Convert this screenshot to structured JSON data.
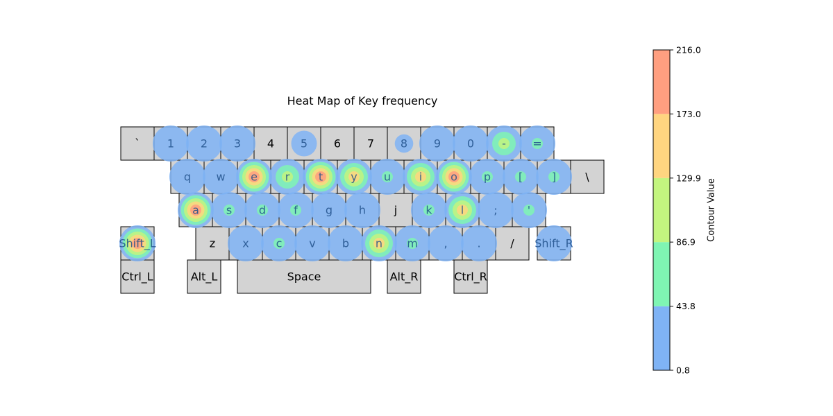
{
  "chart_data": {
    "type": "heatmap",
    "title": "Heat Map of Key frequency",
    "colorbar": {
      "label": "Contour Value",
      "levels": [
        0.8,
        43.8,
        86.9,
        129.9,
        173.0,
        216.0
      ],
      "tick_labels": [
        "0.8",
        "43.8",
        "86.9",
        "129.9",
        "173.0",
        "216.0"
      ],
      "colors": [
        "#7fb3f5",
        "#7ff5b3",
        "#c3f57f",
        "#ffd580",
        "#ff9f80"
      ]
    },
    "keys": [
      {
        "label": "`",
        "row": 0,
        "col": 0,
        "width": 1,
        "value": 0
      },
      {
        "label": "1",
        "row": 0,
        "col": 1,
        "width": 1,
        "value": 20
      },
      {
        "label": "2",
        "row": 0,
        "col": 2,
        "width": 1,
        "value": 20
      },
      {
        "label": "3",
        "row": 0,
        "col": 3,
        "width": 1,
        "value": 20
      },
      {
        "label": "4",
        "row": 0,
        "col": 4,
        "width": 1,
        "value": 0
      },
      {
        "label": "5",
        "row": 0,
        "col": 5,
        "width": 1,
        "value": 10
      },
      {
        "label": "6",
        "row": 0,
        "col": 6,
        "width": 1,
        "value": 0
      },
      {
        "label": "7",
        "row": 0,
        "col": 7,
        "width": 1,
        "value": 0
      },
      {
        "label": "8",
        "row": 0,
        "col": 8,
        "width": 1,
        "value": 3
      },
      {
        "label": "9",
        "row": 0,
        "col": 9,
        "width": 1,
        "value": 20
      },
      {
        "label": "0",
        "row": 0,
        "col": 10,
        "width": 1,
        "value": 20
      },
      {
        "label": "-",
        "row": 0,
        "col": 11,
        "width": 1,
        "value": 100
      },
      {
        "label": "=",
        "row": 0,
        "col": 12,
        "width": 1,
        "value": 60
      },
      {
        "label": "q",
        "row": 1,
        "col": 1.5,
        "width": 1,
        "value": 20
      },
      {
        "label": "w",
        "row": 1,
        "col": 2.5,
        "width": 1,
        "value": 25
      },
      {
        "label": "e",
        "row": 1,
        "col": 3.5,
        "width": 1,
        "value": 210
      },
      {
        "label": "r",
        "row": 1,
        "col": 4.5,
        "width": 1,
        "value": 105
      },
      {
        "label": "t",
        "row": 1,
        "col": 5.5,
        "width": 1,
        "value": 200
      },
      {
        "label": "y",
        "row": 1,
        "col": 6.5,
        "width": 1,
        "value": 150
      },
      {
        "label": "u",
        "row": 1,
        "col": 7.5,
        "width": 1,
        "value": 60
      },
      {
        "label": "i",
        "row": 1,
        "col": 8.5,
        "width": 1,
        "value": 150
      },
      {
        "label": "o",
        "row": 1,
        "col": 9.5,
        "width": 1,
        "value": 175
      },
      {
        "label": "p",
        "row": 1,
        "col": 10.5,
        "width": 1,
        "value": 50
      },
      {
        "label": "[",
        "row": 1,
        "col": 11.5,
        "width": 1,
        "value": 50
      },
      {
        "label": "]",
        "row": 1,
        "col": 12.5,
        "width": 1,
        "value": 55
      },
      {
        "label": "\\",
        "row": 1,
        "col": 13.5,
        "width": 1,
        "value": 0
      },
      {
        "label": "a",
        "row": 2,
        "col": 1.75,
        "width": 1,
        "value": 180
      },
      {
        "label": "s",
        "row": 2,
        "col": 2.75,
        "width": 1,
        "value": 70
      },
      {
        "label": "d",
        "row": 2,
        "col": 3.75,
        "width": 1,
        "value": 60
      },
      {
        "label": "f",
        "row": 2,
        "col": 4.75,
        "width": 1,
        "value": 45
      },
      {
        "label": "g",
        "row": 2,
        "col": 5.75,
        "width": 1,
        "value": 20
      },
      {
        "label": "h",
        "row": 2,
        "col": 6.75,
        "width": 1,
        "value": 20
      },
      {
        "label": "j",
        "row": 2,
        "col": 7.75,
        "width": 1,
        "value": 0
      },
      {
        "label": "k",
        "row": 2,
        "col": 8.75,
        "width": 1,
        "value": 60
      },
      {
        "label": "l",
        "row": 2,
        "col": 9.75,
        "width": 1,
        "value": 130
      },
      {
        "label": ";",
        "row": 2,
        "col": 10.75,
        "width": 1,
        "value": 20
      },
      {
        "label": "'",
        "row": 2,
        "col": 11.75,
        "width": 1,
        "value": 60
      },
      {
        "label": "Shift_L",
        "row": 3,
        "col": 0,
        "width": 1,
        "value": 216
      },
      {
        "label": "z",
        "row": 3,
        "col": 2.25,
        "width": 1,
        "value": 0
      },
      {
        "label": "x",
        "row": 3,
        "col": 3.25,
        "width": 1,
        "value": 20
      },
      {
        "label": "c",
        "row": 3,
        "col": 4.25,
        "width": 1,
        "value": 60
      },
      {
        "label": "v",
        "row": 3,
        "col": 5.25,
        "width": 1,
        "value": 20
      },
      {
        "label": "b",
        "row": 3,
        "col": 6.25,
        "width": 1,
        "value": 20
      },
      {
        "label": "n",
        "row": 3,
        "col": 7.25,
        "width": 1,
        "value": 130
      },
      {
        "label": "m",
        "row": 3,
        "col": 8.25,
        "width": 1,
        "value": 60
      },
      {
        "label": ",",
        "row": 3,
        "col": 9.25,
        "width": 1,
        "value": 20
      },
      {
        "label": ".",
        "row": 3,
        "col": 10.25,
        "width": 1,
        "value": 20
      },
      {
        "label": "/",
        "row": 3,
        "col": 11.25,
        "width": 1,
        "value": 0
      },
      {
        "label": "Shift_R",
        "row": 3,
        "col": 12.5,
        "width": 1,
        "value": 20
      },
      {
        "label": "Ctrl_L",
        "row": 4,
        "col": 0,
        "width": 1,
        "value": 0
      },
      {
        "label": "Alt_L",
        "row": 4,
        "col": 2,
        "width": 1,
        "value": 0
      },
      {
        "label": "Space",
        "row": 4,
        "col": 3.5,
        "width": 4,
        "value": 0
      },
      {
        "label": "Alt_R",
        "row": 4,
        "col": 8,
        "width": 1,
        "value": 0
      },
      {
        "label": "Ctrl_R",
        "row": 4,
        "col": 10,
        "width": 1,
        "value": 0
      }
    ]
  }
}
